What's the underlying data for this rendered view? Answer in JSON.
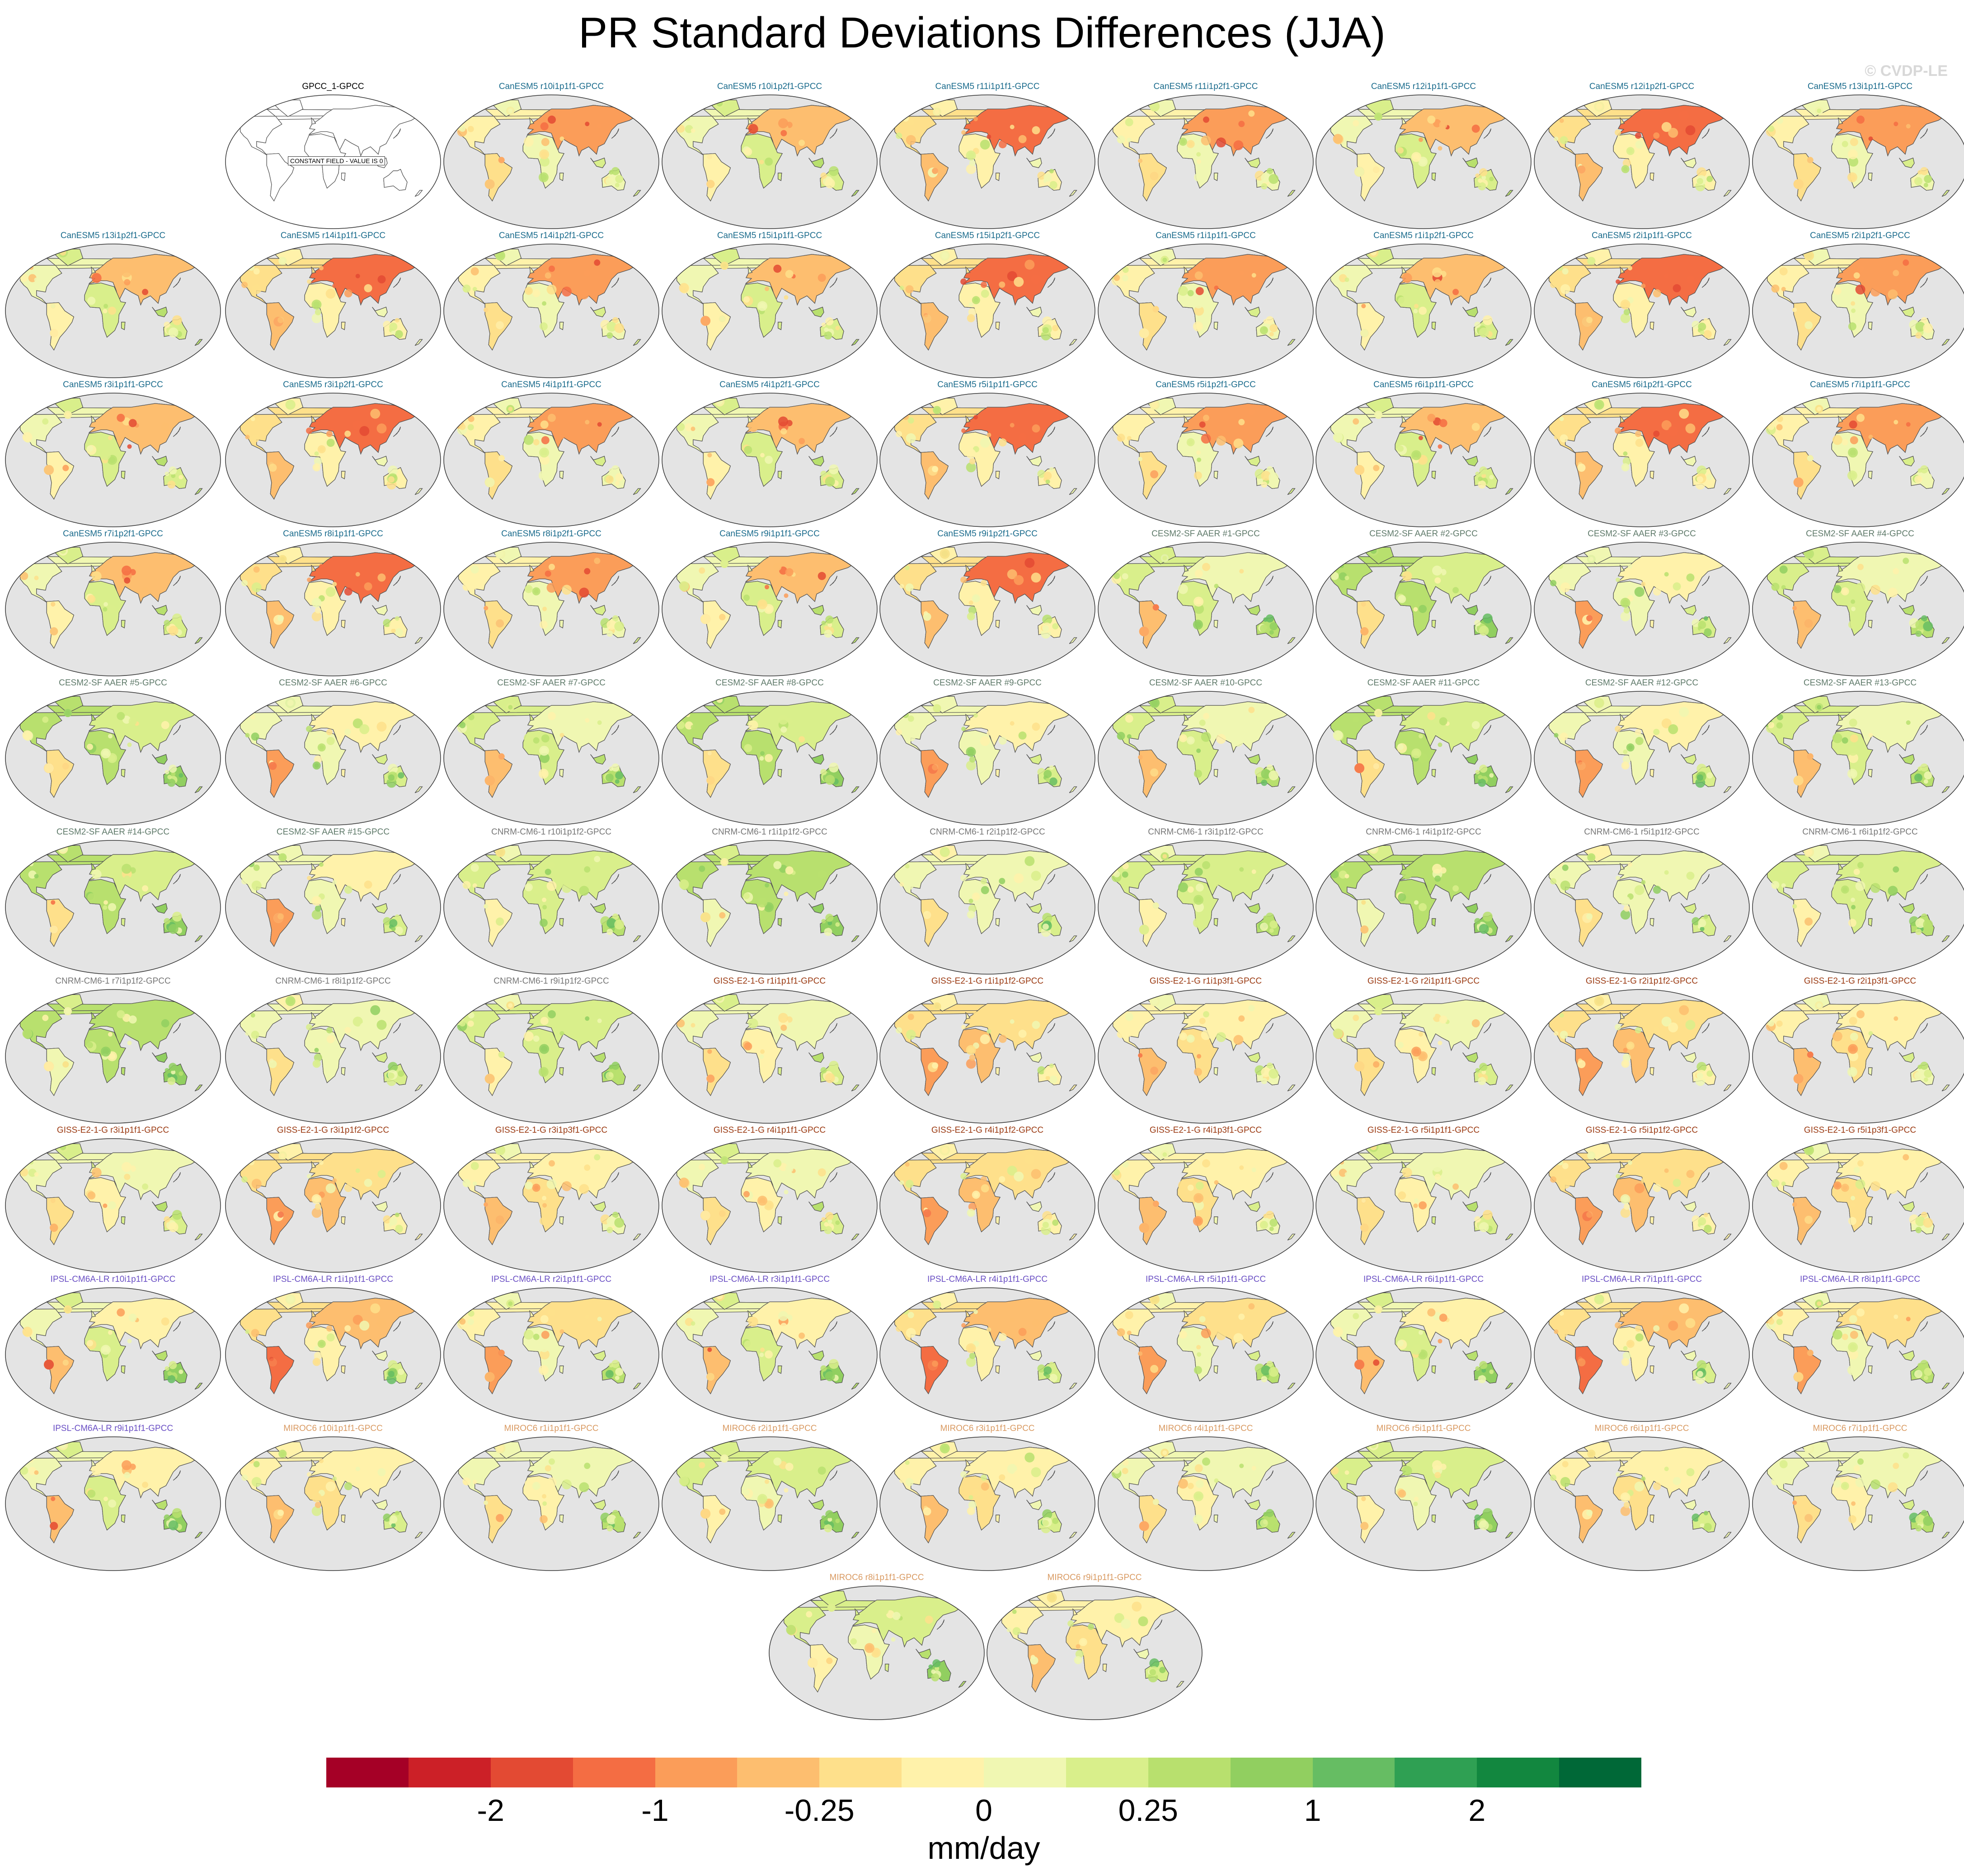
{
  "title": "PR Standard Deviations Differences (JJA)",
  "watermark": "© CVDP-LE",
  "colors": {
    "ocean": "#e4e4e4",
    "coast": "#555555",
    "canesm5": "#1a6b8c",
    "cesm2": "#5f7a6a",
    "cnrm": "#777777",
    "giss": "#9b3a12",
    "ipsl": "#6a4fc4",
    "miroc6": "#d99a62",
    "obs": "#000000"
  },
  "reference_panel": {
    "label": "GPCC_1-GPCC",
    "note": "CONSTANT FIELD - VALUE IS 0"
  },
  "panels": [
    {
      "label": "CanESM5 r10i1p1f1-GPCC",
      "group": "canesm5"
    },
    {
      "label": "CanESM5 r10i1p2f1-GPCC",
      "group": "canesm5"
    },
    {
      "label": "CanESM5 r11i1p1f1-GPCC",
      "group": "canesm5"
    },
    {
      "label": "CanESM5 r11i1p2f1-GPCC",
      "group": "canesm5"
    },
    {
      "label": "CanESM5 r12i1p1f1-GPCC",
      "group": "canesm5"
    },
    {
      "label": "CanESM5 r12i1p2f1-GPCC",
      "group": "canesm5"
    },
    {
      "label": "CanESM5 r13i1p1f1-GPCC",
      "group": "canesm5"
    },
    {
      "label": "CanESM5 r13i1p2f1-GPCC",
      "group": "canesm5"
    },
    {
      "label": "CanESM5 r14i1p1f1-GPCC",
      "group": "canesm5"
    },
    {
      "label": "CanESM5 r14i1p2f1-GPCC",
      "group": "canesm5"
    },
    {
      "label": "CanESM5 r15i1p1f1-GPCC",
      "group": "canesm5"
    },
    {
      "label": "CanESM5 r15i1p2f1-GPCC",
      "group": "canesm5"
    },
    {
      "label": "CanESM5 r1i1p1f1-GPCC",
      "group": "canesm5"
    },
    {
      "label": "CanESM5 r1i1p2f1-GPCC",
      "group": "canesm5"
    },
    {
      "label": "CanESM5 r2i1p1f1-GPCC",
      "group": "canesm5"
    },
    {
      "label": "CanESM5 r2i1p2f1-GPCC",
      "group": "canesm5"
    },
    {
      "label": "CanESM5 r3i1p1f1-GPCC",
      "group": "canesm5"
    },
    {
      "label": "CanESM5 r3i1p2f1-GPCC",
      "group": "canesm5"
    },
    {
      "label": "CanESM5 r4i1p1f1-GPCC",
      "group": "canesm5"
    },
    {
      "label": "CanESM5 r4i1p2f1-GPCC",
      "group": "canesm5"
    },
    {
      "label": "CanESM5 r5i1p1f1-GPCC",
      "group": "canesm5"
    },
    {
      "label": "CanESM5 r5i1p2f1-GPCC",
      "group": "canesm5"
    },
    {
      "label": "CanESM5 r6i1p1f1-GPCC",
      "group": "canesm5"
    },
    {
      "label": "CanESM5 r6i1p2f1-GPCC",
      "group": "canesm5"
    },
    {
      "label": "CanESM5 r7i1p1f1-GPCC",
      "group": "canesm5"
    },
    {
      "label": "CanESM5 r7i1p2f1-GPCC",
      "group": "canesm5"
    },
    {
      "label": "CanESM5 r8i1p1f1-GPCC",
      "group": "canesm5"
    },
    {
      "label": "CanESM5 r8i1p2f1-GPCC",
      "group": "canesm5"
    },
    {
      "label": "CanESM5 r9i1p1f1-GPCC",
      "group": "canesm5"
    },
    {
      "label": "CanESM5 r9i1p2f1-GPCC",
      "group": "canesm5"
    },
    {
      "label": "CESM2-SF AAER #1-GPCC",
      "group": "cesm2"
    },
    {
      "label": "CESM2-SF AAER #2-GPCC",
      "group": "cesm2"
    },
    {
      "label": "CESM2-SF AAER #3-GPCC",
      "group": "cesm2"
    },
    {
      "label": "CESM2-SF AAER #4-GPCC",
      "group": "cesm2"
    },
    {
      "label": "CESM2-SF AAER #5-GPCC",
      "group": "cesm2"
    },
    {
      "label": "CESM2-SF AAER #6-GPCC",
      "group": "cesm2"
    },
    {
      "label": "CESM2-SF AAER #7-GPCC",
      "group": "cesm2"
    },
    {
      "label": "CESM2-SF AAER #8-GPCC",
      "group": "cesm2"
    },
    {
      "label": "CESM2-SF AAER #9-GPCC",
      "group": "cesm2"
    },
    {
      "label": "CESM2-SF AAER #10-GPCC",
      "group": "cesm2"
    },
    {
      "label": "CESM2-SF AAER #11-GPCC",
      "group": "cesm2"
    },
    {
      "label": "CESM2-SF AAER #12-GPCC",
      "group": "cesm2"
    },
    {
      "label": "CESM2-SF AAER #13-GPCC",
      "group": "cesm2"
    },
    {
      "label": "CESM2-SF AAER #14-GPCC",
      "group": "cesm2"
    },
    {
      "label": "CESM2-SF AAER #15-GPCC",
      "group": "cesm2"
    },
    {
      "label": "CNRM-CM6-1 r10i1p1f2-GPCC",
      "group": "cnrm"
    },
    {
      "label": "CNRM-CM6-1 r1i1p1f2-GPCC",
      "group": "cnrm"
    },
    {
      "label": "CNRM-CM6-1 r2i1p1f2-GPCC",
      "group": "cnrm"
    },
    {
      "label": "CNRM-CM6-1 r3i1p1f2-GPCC",
      "group": "cnrm"
    },
    {
      "label": "CNRM-CM6-1 r4i1p1f2-GPCC",
      "group": "cnrm"
    },
    {
      "label": "CNRM-CM6-1 r5i1p1f2-GPCC",
      "group": "cnrm"
    },
    {
      "label": "CNRM-CM6-1 r6i1p1f2-GPCC",
      "group": "cnrm"
    },
    {
      "label": "CNRM-CM6-1 r7i1p1f2-GPCC",
      "group": "cnrm"
    },
    {
      "label": "CNRM-CM6-1 r8i1p1f2-GPCC",
      "group": "cnrm"
    },
    {
      "label": "CNRM-CM6-1 r9i1p1f2-GPCC",
      "group": "cnrm"
    },
    {
      "label": "GISS-E2-1-G r1i1p1f1-GPCC",
      "group": "giss"
    },
    {
      "label": "GISS-E2-1-G r1i1p1f2-GPCC",
      "group": "giss"
    },
    {
      "label": "GISS-E2-1-G r1i1p3f1-GPCC",
      "group": "giss"
    },
    {
      "label": "GISS-E2-1-G r2i1p1f1-GPCC",
      "group": "giss"
    },
    {
      "label": "GISS-E2-1-G r2i1p1f2-GPCC",
      "group": "giss"
    },
    {
      "label": "GISS-E2-1-G r2i1p3f1-GPCC",
      "group": "giss"
    },
    {
      "label": "GISS-E2-1-G r3i1p1f1-GPCC",
      "group": "giss"
    },
    {
      "label": "GISS-E2-1-G r3i1p1f2-GPCC",
      "group": "giss"
    },
    {
      "label": "GISS-E2-1-G r3i1p3f1-GPCC",
      "group": "giss"
    },
    {
      "label": "GISS-E2-1-G r4i1p1f1-GPCC",
      "group": "giss"
    },
    {
      "label": "GISS-E2-1-G r4i1p1f2-GPCC",
      "group": "giss"
    },
    {
      "label": "GISS-E2-1-G r4i1p3f1-GPCC",
      "group": "giss"
    },
    {
      "label": "GISS-E2-1-G r5i1p1f1-GPCC",
      "group": "giss"
    },
    {
      "label": "GISS-E2-1-G r5i1p1f2-GPCC",
      "group": "giss"
    },
    {
      "label": "GISS-E2-1-G r5i1p3f1-GPCC",
      "group": "giss"
    },
    {
      "label": "IPSL-CM6A-LR r10i1p1f1-GPCC",
      "group": "ipsl"
    },
    {
      "label": "IPSL-CM6A-LR r1i1p1f1-GPCC",
      "group": "ipsl"
    },
    {
      "label": "IPSL-CM6A-LR r2i1p1f1-GPCC",
      "group": "ipsl"
    },
    {
      "label": "IPSL-CM6A-LR r3i1p1f1-GPCC",
      "group": "ipsl"
    },
    {
      "label": "IPSL-CM6A-LR r4i1p1f1-GPCC",
      "group": "ipsl"
    },
    {
      "label": "IPSL-CM6A-LR r5i1p1f1-GPCC",
      "group": "ipsl"
    },
    {
      "label": "IPSL-CM6A-LR r6i1p1f1-GPCC",
      "group": "ipsl"
    },
    {
      "label": "IPSL-CM6A-LR r7i1p1f1-GPCC",
      "group": "ipsl"
    },
    {
      "label": "IPSL-CM6A-LR r8i1p1f1-GPCC",
      "group": "ipsl"
    },
    {
      "label": "IPSL-CM6A-LR r9i1p1f1-GPCC",
      "group": "ipsl"
    },
    {
      "label": "MIROC6 r10i1p1f1-GPCC",
      "group": "miroc6"
    },
    {
      "label": "MIROC6 r1i1p1f1-GPCC",
      "group": "miroc6"
    },
    {
      "label": "MIROC6 r2i1p1f1-GPCC",
      "group": "miroc6"
    },
    {
      "label": "MIROC6 r3i1p1f1-GPCC",
      "group": "miroc6"
    },
    {
      "label": "MIROC6 r4i1p1f1-GPCC",
      "group": "miroc6"
    },
    {
      "label": "MIROC6 r5i1p1f1-GPCC",
      "group": "miroc6"
    },
    {
      "label": "MIROC6 r6i1p1f1-GPCC",
      "group": "miroc6"
    },
    {
      "label": "MIROC6 r7i1p1f1-GPCC",
      "group": "miroc6"
    },
    {
      "label": "MIROC6 r8i1p1f1-GPCC",
      "group": "miroc6"
    },
    {
      "label": "MIROC6 r9i1p1f1-GPCC",
      "group": "miroc6"
    }
  ],
  "colorbar": {
    "unit": "mm/day",
    "colors": [
      "#a50026",
      "#cc2027",
      "#e34a33",
      "#f46d43",
      "#fb9d59",
      "#fdbe6f",
      "#fee08b",
      "#fff2aa",
      "#f0f7b2",
      "#d9ef8b",
      "#b8e06e",
      "#91cf60",
      "#66bd63",
      "#2fa053",
      "#12873f",
      "#006837"
    ],
    "ticks": [
      {
        "label": "-2",
        "boundary": 2
      },
      {
        "label": "-1",
        "boundary": 4
      },
      {
        "label": "-0.25",
        "boundary": 6
      },
      {
        "label": "0",
        "boundary": 8
      },
      {
        "label": "0.25",
        "boundary": 10
      },
      {
        "label": "1",
        "boundary": 12
      },
      {
        "label": "2",
        "boundary": 14
      }
    ]
  }
}
